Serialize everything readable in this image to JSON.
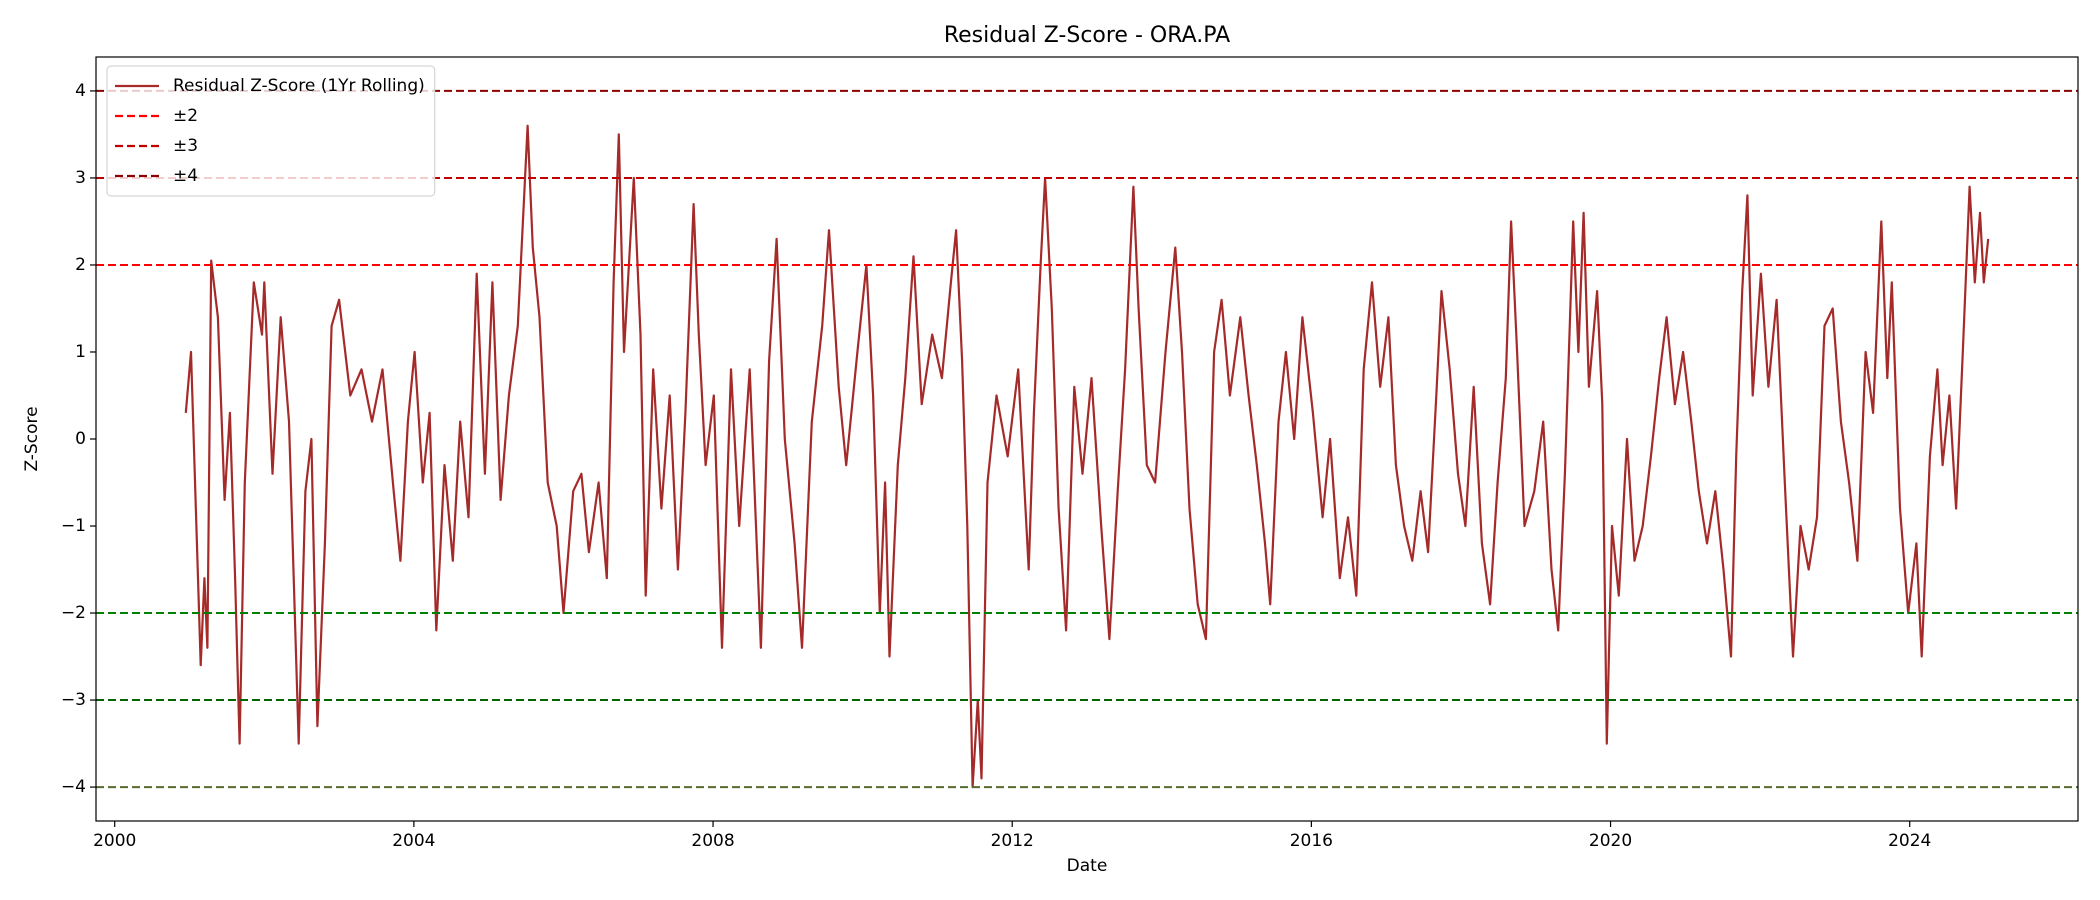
{
  "chart_data": {
    "type": "line",
    "title": "Residual Z-Score - ORA.PA",
    "x_label": "Date",
    "y_label": "Z-Score",
    "xlim": [
      1999.75,
      2026.25
    ],
    "xticks": [
      2000,
      2004,
      2008,
      2012,
      2016,
      2020,
      2024
    ],
    "ylim": [
      -4.39,
      4.39
    ],
    "yticks": [
      {
        "value": -4,
        "label": "−4"
      },
      {
        "value": -3,
        "label": "−3"
      },
      {
        "value": -2,
        "label": "−2"
      },
      {
        "value": -1,
        "label": "−1"
      },
      0,
      1,
      2,
      3,
      4
    ],
    "legend": "upper left",
    "series": [
      {
        "name": "Residual Z-Score (1Yr Rolling)",
        "color": "#a52a2a",
        "x": [
          2000.95,
          2001.02,
          2001.15,
          2001.2,
          2001.24,
          2001.29,
          2001.38,
          2001.47,
          2001.54,
          2001.61,
          2001.67,
          2001.74,
          2001.86,
          2001.97,
          2002.0,
          2002.11,
          2002.22,
          2002.33,
          2002.46,
          2002.55,
          2002.63,
          2002.71,
          2002.81,
          2002.9,
          2003.0,
          2003.15,
          2003.3,
          2003.44,
          2003.58,
          2003.73,
          2003.82,
          2003.92,
          2004.01,
          2004.12,
          2004.21,
          2004.3,
          2004.41,
          2004.52,
          2004.62,
          2004.73,
          2004.84,
          2004.95,
          2005.05,
          2005.16,
          2005.27,
          2005.39,
          2005.52,
          2005.59,
          2005.68,
          2005.79,
          2005.91,
          2006.0,
          2006.13,
          2006.24,
          2006.34,
          2006.47,
          2006.58,
          2006.67,
          2006.74,
          2006.81,
          2006.94,
          2007.03,
          2007.1,
          2007.2,
          2007.31,
          2007.42,
          2007.53,
          2007.63,
          2007.74,
          2007.81,
          2007.9,
          2008.01,
          2008.12,
          2008.24,
          2008.35,
          2008.49,
          2008.64,
          2008.75,
          2008.85,
          2008.96,
          2009.09,
          2009.19,
          2009.32,
          2009.46,
          2009.55,
          2009.68,
          2009.78,
          2009.93,
          2010.05,
          2010.14,
          2010.23,
          2010.3,
          2010.36,
          2010.47,
          2010.57,
          2010.68,
          2010.79,
          2010.93,
          2011.06,
          2011.18,
          2011.25,
          2011.33,
          2011.4,
          2011.47,
          2011.54,
          2011.59,
          2011.67,
          2011.79,
          2011.94,
          2012.08,
          2012.22,
          2012.29,
          2012.38,
          2012.44,
          2012.53,
          2012.62,
          2012.72,
          2012.83,
          2012.94,
          2013.06,
          2013.19,
          2013.3,
          2013.41,
          2013.51,
          2013.62,
          2013.69,
          2013.8,
          2013.91,
          2014.05,
          2014.18,
          2014.27,
          2014.37,
          2014.48,
          2014.59,
          2014.7,
          2014.8,
          2014.91,
          2015.05,
          2015.16,
          2015.27,
          2015.38,
          2015.45,
          2015.56,
          2015.66,
          2015.77,
          2015.88,
          2016.02,
          2016.15,
          2016.25,
          2016.38,
          2016.49,
          2016.6,
          2016.7,
          2016.81,
          2016.92,
          2017.03,
          2017.13,
          2017.24,
          2017.35,
          2017.46,
          2017.56,
          2017.67,
          2017.74,
          2017.85,
          2017.96,
          2018.06,
          2018.17,
          2018.28,
          2018.39,
          2018.49,
          2018.6,
          2018.67,
          2018.75,
          2018.85,
          2018.98,
          2019.1,
          2019.21,
          2019.3,
          2019.39,
          2019.5,
          2019.57,
          2019.64,
          2019.71,
          2019.82,
          2019.89,
          2019.95,
          2020.02,
          2020.11,
          2020.22,
          2020.32,
          2020.43,
          2020.54,
          2020.65,
          2020.75,
          2020.86,
          2020.97,
          2021.08,
          2021.18,
          2021.29,
          2021.4,
          2021.51,
          2021.61,
          2021.68,
          2021.76,
          2021.83,
          2021.9,
          2022.01,
          2022.11,
          2022.22,
          2022.33,
          2022.44,
          2022.54,
          2022.65,
          2022.76,
          2022.86,
          2022.97,
          2023.08,
          2023.19,
          2023.3,
          2023.41,
          2023.51,
          2023.62,
          2023.7,
          2023.76,
          2023.87,
          2023.98,
          2024.09,
          2024.16,
          2024.27,
          2024.37,
          2024.44,
          2024.53,
          2024.62,
          2024.71,
          2024.8,
          2024.87,
          2024.94,
          2024.99,
          2025.05
        ],
        "values": [
          0.3,
          1.0,
          -2.6,
          -1.6,
          -2.4,
          2.05,
          1.4,
          -0.7,
          0.3,
          -1.6,
          -3.5,
          -0.5,
          1.8,
          1.2,
          1.8,
          -0.4,
          1.4,
          0.2,
          -3.5,
          -0.6,
          0.0,
          -3.3,
          -1.2,
          1.3,
          1.6,
          0.5,
          0.8,
          0.2,
          0.8,
          -0.6,
          -1.4,
          0.2,
          1.0,
          -0.5,
          0.3,
          -2.2,
          -0.3,
          -1.4,
          0.2,
          -0.9,
          1.9,
          -0.4,
          1.8,
          -0.7,
          0.5,
          1.3,
          3.6,
          2.2,
          1.4,
          -0.5,
          -1.0,
          -2.0,
          -0.6,
          -0.4,
          -1.3,
          -0.5,
          -1.6,
          1.8,
          3.5,
          1.0,
          3.0,
          1.2,
          -1.8,
          0.8,
          -0.8,
          0.5,
          -1.5,
          0.3,
          2.7,
          1.2,
          -0.3,
          0.5,
          -2.4,
          0.8,
          -1.0,
          0.8,
          -2.4,
          0.9,
          2.3,
          0.0,
          -1.2,
          -2.4,
          0.2,
          1.3,
          2.4,
          0.6,
          -0.3,
          1.0,
          2.0,
          0.5,
          -2.0,
          -0.5,
          -2.5,
          -0.3,
          0.7,
          2.1,
          0.4,
          1.2,
          0.7,
          1.8,
          2.4,
          0.9,
          -1.0,
          -4.0,
          -3.0,
          -3.9,
          -0.5,
          0.5,
          -0.2,
          0.8,
          -1.5,
          0.3,
          2.0,
          3.0,
          1.5,
          -0.8,
          -2.2,
          0.6,
          -0.4,
          0.7,
          -1.0,
          -2.3,
          -0.6,
          0.8,
          2.9,
          1.5,
          -0.3,
          -0.5,
          1.0,
          2.2,
          1.0,
          -0.8,
          -1.9,
          -2.3,
          1.0,
          1.6,
          0.5,
          1.4,
          0.5,
          -0.3,
          -1.2,
          -1.9,
          0.2,
          1.0,
          0.0,
          1.4,
          0.3,
          -0.9,
          0.0,
          -1.6,
          -0.9,
          -1.8,
          0.8,
          1.8,
          0.6,
          1.4,
          -0.3,
          -1.0,
          -1.4,
          -0.6,
          -1.3,
          0.5,
          1.7,
          0.8,
          -0.4,
          -1.0,
          0.6,
          -1.2,
          -1.9,
          -0.5,
          0.7,
          2.5,
          1.0,
          -1.0,
          -0.6,
          0.2,
          -1.5,
          -2.2,
          -0.4,
          2.5,
          1.0,
          2.6,
          0.6,
          1.7,
          0.4,
          -3.5,
          -1.0,
          -1.8,
          0.0,
          -1.4,
          -1.0,
          -0.2,
          0.7,
          1.4,
          0.4,
          1.0,
          0.2,
          -0.6,
          -1.2,
          -0.6,
          -1.5,
          -2.5,
          -0.2,
          1.7,
          2.8,
          0.5,
          1.9,
          0.6,
          1.6,
          -0.5,
          -2.5,
          -1.0,
          -1.5,
          -0.9,
          1.3,
          1.5,
          0.2,
          -0.5,
          -1.4,
          1.0,
          0.3,
          2.5,
          0.7,
          1.8,
          -0.8,
          -2.0,
          -1.2,
          -2.5,
          -0.2,
          0.8,
          -0.3,
          0.5,
          -0.8,
          1.0,
          2.9,
          1.8,
          2.6,
          1.8,
          2.3
        ]
      }
    ],
    "reference_lines": [
      {
        "name": "±2",
        "values": [
          2,
          -2
        ],
        "colors": [
          "#ff0000",
          "#008000"
        ]
      },
      {
        "name": "±3",
        "values": [
          3,
          -3
        ],
        "colors": [
          "#c00000",
          "#006400"
        ]
      },
      {
        "name": "±4",
        "values": [
          4,
          -4
        ],
        "colors": [
          "#8b0000",
          "#556b2f"
        ]
      }
    ]
  }
}
